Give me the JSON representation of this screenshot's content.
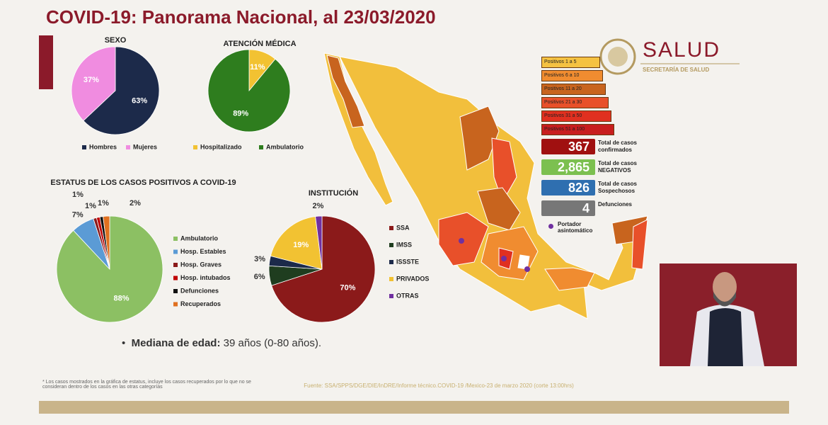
{
  "title": "COVID-19: Panorama Nacional, al 23/03/2020",
  "chart_data": [
    {
      "type": "pie",
      "title": "SEXO",
      "categories": [
        "Hombres",
        "Mujeres"
      ],
      "values": [
        63,
        37
      ],
      "value_labels": [
        "63%",
        "37%"
      ],
      "colors": [
        "#1c2a4a",
        "#f08ce0"
      ]
    },
    {
      "type": "pie",
      "title": "ATENCIÓN MÉDICA",
      "categories": [
        "Hospitalizado",
        "Ambulatorio"
      ],
      "values": [
        11,
        89
      ],
      "value_labels": [
        "11%",
        "89%"
      ],
      "colors": [
        "#f2c232",
        "#2e7d1e"
      ]
    },
    {
      "type": "pie",
      "title": "ESTATUS DE LOS CASOS POSITIVOS A COVID-19",
      "categories": [
        "Ambulatorio",
        "Hosp. Estables",
        "Hosp. Graves",
        "Hosp. intubados",
        "Defunciones",
        "Recuperados"
      ],
      "values": [
        88,
        7,
        1,
        1,
        1,
        2
      ],
      "value_labels": [
        "88%",
        "7%",
        "1%",
        "1%",
        "1%",
        "2%"
      ],
      "colors": [
        "#8cc063",
        "#5b9bd5",
        "#8b1a1a",
        "#c00000",
        "#111111",
        "#e07020"
      ]
    },
    {
      "type": "pie",
      "title": "INSTITUCIÓN",
      "categories": [
        "SSA",
        "IMSS",
        "ISSSTE",
        "PRIVADOS",
        "OTRAS"
      ],
      "values": [
        70,
        6,
        3,
        19,
        2
      ],
      "value_labels": [
        "70%",
        "6%",
        "3%",
        "19%",
        "2%"
      ],
      "colors": [
        "#8b1a1a",
        "#1f3d1f",
        "#1c2a4a",
        "#f2c232",
        "#7030a0"
      ]
    }
  ],
  "map_legend": [
    {
      "label": "Positivos 1 a 5",
      "color": "#f5c242"
    },
    {
      "label": "Positivos 6 a 10",
      "color": "#f08c30"
    },
    {
      "label": "Positivos 11 a 20",
      "color": "#c8641e"
    },
    {
      "label": "Positivos 21 a 30",
      "color": "#e8502a"
    },
    {
      "label": "Positivos 31 a 50",
      "color": "#e03020"
    },
    {
      "label": "Positivos 51 a 100",
      "color": "#c81e1e"
    }
  ],
  "stats": [
    {
      "value": "367",
      "label": "Total de casos confirmados",
      "color": "#a01010"
    },
    {
      "value": "2,865",
      "label": "Total de casos NEGATIVOS",
      "color": "#7cc050"
    },
    {
      "value": "826",
      "label": "Total de casos Sospechosos",
      "color": "#2f6fb0"
    },
    {
      "value": "4",
      "label": "Defunciones",
      "color": "#777777"
    }
  ],
  "carrier": "Portador asintomático",
  "logo": {
    "name": "SALUD",
    "subtitle": "SECRETARÍA DE SALUD"
  },
  "median": {
    "label": "Mediana de edad:",
    "value": "39 años (0-80 años)."
  },
  "footnote": "* Los casos mostrados en la gráfica de estatus, incluye los casos recuperados por lo que no se consideran dentro de los casos en las otras categorías",
  "source": "Fuente: SSA/SPPS/DGE/DIE/InDRE/Informe técnico.COVID-19 /Mexico-23 de marzo 2020 (corte 13:00hrs)"
}
